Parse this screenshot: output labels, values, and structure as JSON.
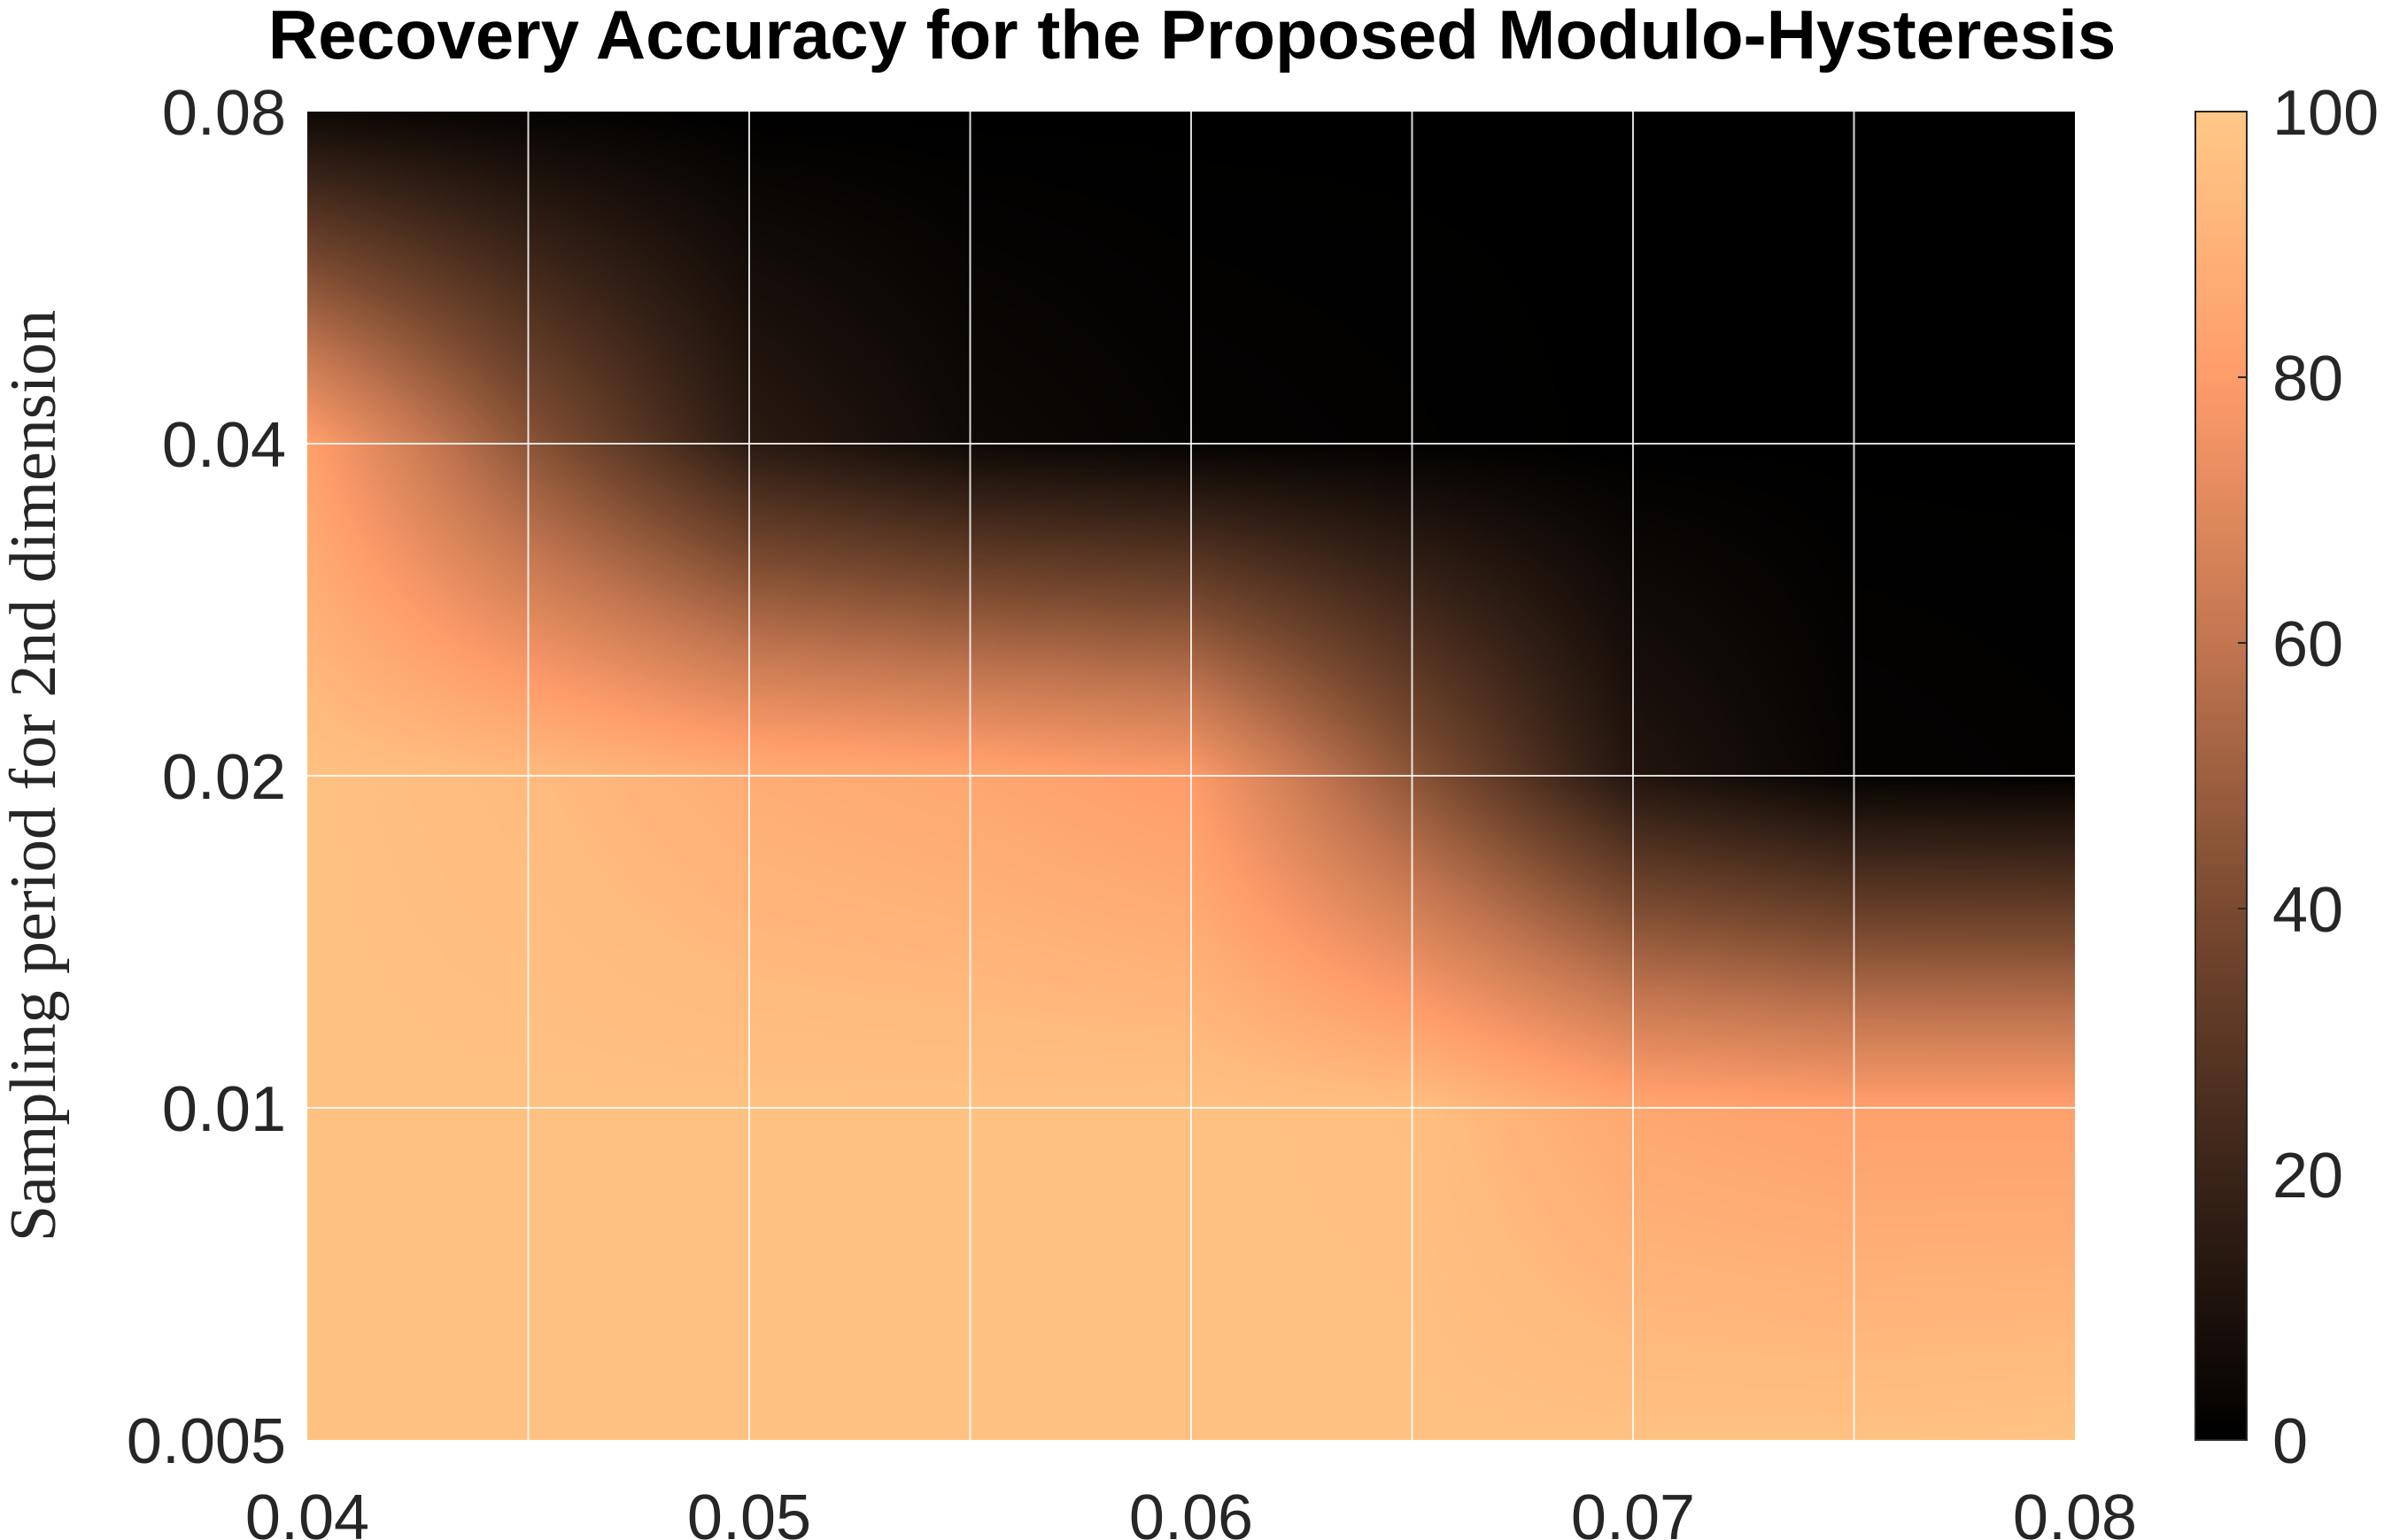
{
  "chart_data": {
    "type": "heatmap",
    "title": "Recovery Accuracy for the Proposed Modulo-Hysteresis",
    "xlabel": "",
    "ylabel": "Sampling period for 2nd dimension",
    "x_range": [
      0.04,
      0.08
    ],
    "x_ticks": [
      "0.04",
      "0.05",
      "0.06",
      "0.07",
      "0.08"
    ],
    "y_scale": "log",
    "y_ticks": [
      "0.005",
      "0.01",
      "0.02",
      "0.04",
      "0.08"
    ],
    "y_tick_values": [
      0.005,
      0.01,
      0.02,
      0.04,
      0.08
    ],
    "grid": true,
    "colorbar": {
      "range": [
        0,
        100
      ],
      "ticks": [
        "0",
        "20",
        "40",
        "60",
        "80",
        "100"
      ],
      "tick_values": [
        0,
        20,
        40,
        60,
        80,
        100
      ],
      "colormap": "copper-like",
      "colors": [
        "#000000",
        "#3a2418",
        "#7a4a30",
        "#c27650",
        "#fe9c6a",
        "#ffc886"
      ]
    },
    "grid_x": [
      0.04,
      0.045,
      0.05,
      0.055,
      0.06,
      0.065,
      0.07,
      0.075,
      0.08
    ],
    "grid_y": [
      0.005,
      0.01,
      0.02,
      0.04,
      0.08
    ],
    "values": [
      [
        97,
        97,
        97,
        97,
        97,
        97,
        97,
        97,
        98
      ],
      [
        97,
        97,
        97,
        97,
        97,
        96,
        85,
        82,
        82
      ],
      [
        97,
        94,
        88,
        85,
        80,
        45,
        12,
        2,
        1
      ],
      [
        82,
        45,
        15,
        5,
        2,
        1,
        0,
        0,
        0
      ],
      [
        5,
        2,
        0,
        0,
        0,
        0,
        0,
        0,
        0
      ]
    ]
  }
}
